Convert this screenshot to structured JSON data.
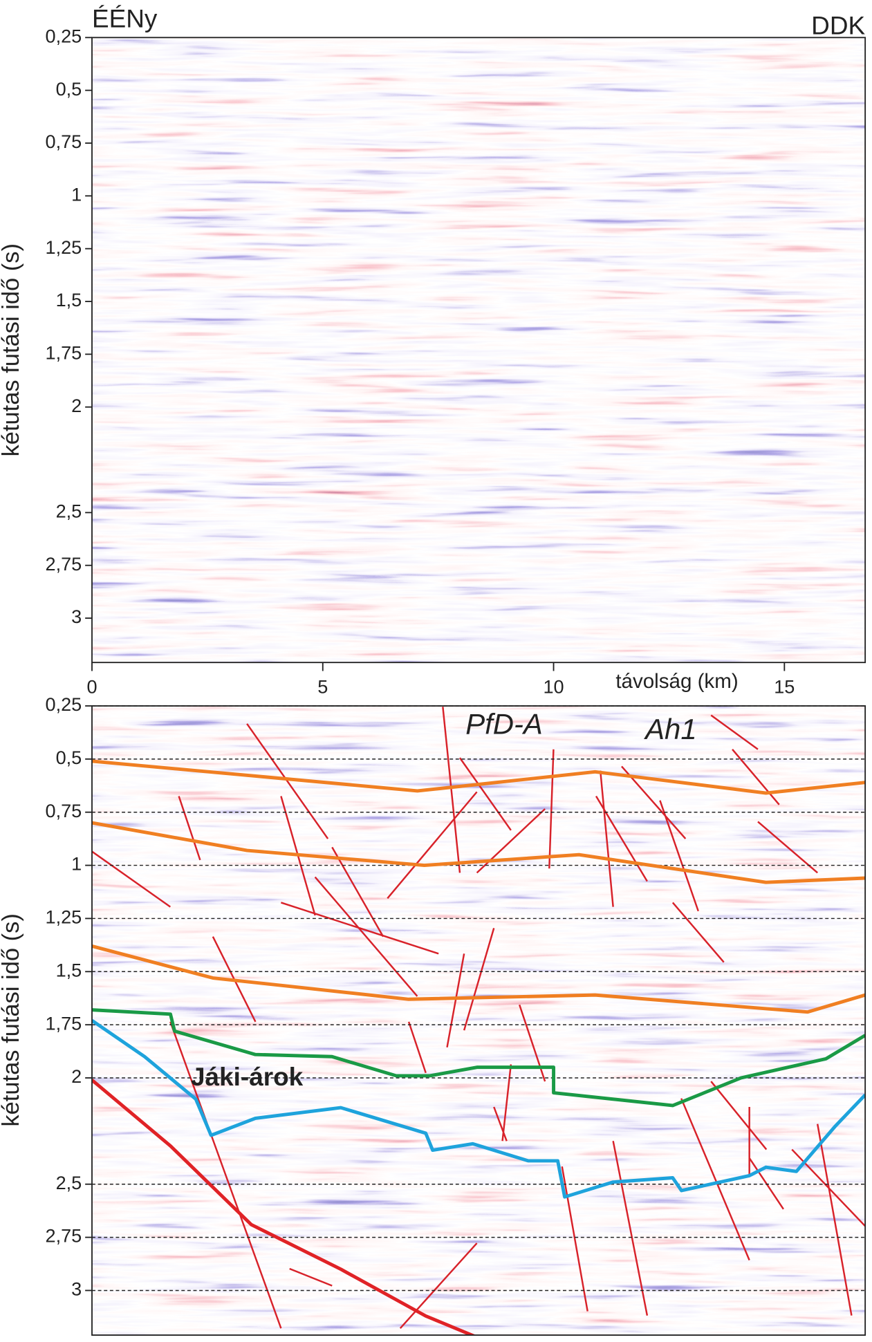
{
  "chart_data": [
    {
      "type": "seismic-section",
      "corner_left": "ÉÉNy",
      "corner_right": "DDK",
      "ylabel": "kétutas futási idő (s)",
      "xlabel": "távolság (km)",
      "xlim": [
        0,
        16.75
      ],
      "xticks": [
        0,
        5,
        10,
        15
      ],
      "ylim": [
        0.25,
        3.21
      ],
      "y_inverted": true,
      "yticks": [
        {
          "value": 0.25,
          "label": "0,25"
        },
        {
          "value": 0.5,
          "label": "0,5"
        },
        {
          "value": 0.75,
          "label": "0,75"
        },
        1,
        {
          "value": 1.25,
          "label": "1,25"
        },
        {
          "value": 1.5,
          "label": "1,5"
        },
        {
          "value": 1.75,
          "label": "1,75"
        },
        2,
        {
          "value": 2.5,
          "label": "2,5"
        },
        {
          "value": 2.75,
          "label": "2,75"
        },
        3
      ],
      "grid": false
    },
    {
      "type": "seismic-section",
      "ylabel": "kétutas futási idő (s)",
      "xlim": [
        0,
        16.75
      ],
      "ylim": [
        0.25,
        3.21
      ],
      "y_inverted": true,
      "yticks": [
        {
          "value": 0.25,
          "label": "0,25"
        },
        {
          "value": 0.5,
          "label": "0,5"
        },
        {
          "value": 0.75,
          "label": "0,75"
        },
        1,
        {
          "value": 1.25,
          "label": "1,25"
        },
        {
          "value": 1.5,
          "label": "1,5"
        },
        {
          "value": 1.75,
          "label": "1,75"
        },
        2,
        {
          "value": 2.5,
          "label": "2,5"
        },
        {
          "value": 2.75,
          "label": "2,75"
        },
        3
      ],
      "grid": true,
      "annotations": [
        "PfD-A",
        "Ah1",
        "Jáki-árok"
      ],
      "series": [
        {
          "color": "#f07f22",
          "x": [
            0,
            3.54,
            7.05,
            10.9,
            14.6,
            16.75
          ],
          "values": [
            0.51,
            0.58,
            0.65,
            0.56,
            0.66,
            0.61
          ]
        },
        {
          "color": "#f07f22",
          "x": [
            0,
            3.36,
            7.2,
            10.55,
            14.6,
            16.75
          ],
          "values": [
            0.8,
            0.93,
            1.0,
            0.95,
            1.08,
            1.06
          ]
        },
        {
          "color": "#f07f22",
          "x": [
            0,
            2.62,
            6.86,
            10.9,
            15.5,
            16.75
          ],
          "values": [
            1.38,
            1.53,
            1.63,
            1.61,
            1.69,
            1.61
          ]
        },
        {
          "color": "#1a9a46",
          "x": [
            0,
            1.7,
            1.79,
            3.54,
            5.2,
            6.59,
            7.32,
            8.34,
            10.0,
            10.0,
            12.58,
            14.06,
            15.9,
            16.75
          ],
          "values": [
            1.68,
            1.7,
            1.78,
            1.89,
            1.9,
            1.99,
            1.99,
            1.95,
            1.95,
            2.07,
            2.13,
            2.0,
            1.91,
            1.8
          ]
        },
        {
          "color": "#1ea3dc",
          "x": [
            0,
            1.14,
            2.25,
            2.58,
            3.54,
            5.39,
            7.23,
            7.38,
            8.25,
            9.45,
            10.09,
            10.24,
            11.29,
            12.58,
            12.77,
            14.24,
            14.6,
            15.26,
            16.09,
            16.75
          ],
          "values": [
            1.73,
            1.9,
            2.1,
            2.27,
            2.19,
            2.14,
            2.26,
            2.34,
            2.31,
            2.39,
            2.39,
            2.56,
            2.49,
            2.47,
            2.53,
            2.46,
            2.42,
            2.44,
            2.23,
            2.08
          ]
        },
        {
          "color": "#e02226",
          "x": [
            0,
            1.7,
            3.45,
            5.39,
            7.23,
            8.34
          ],
          "values": [
            2.01,
            2.32,
            2.69,
            2.9,
            3.12,
            3.22
          ]
        }
      ]
    }
  ]
}
